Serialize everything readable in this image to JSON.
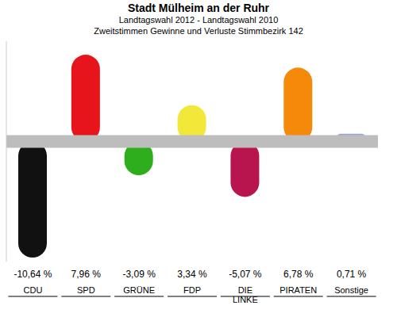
{
  "chart_data": {
    "type": "bar",
    "title": "Stadt Mülheim an der Ruhr",
    "subtitle": "Landtagswahl 2012 - Landtagswahl 2010\nZweitstimmen Gewinne und Verluste Stimmbezirk 142",
    "categories": [
      "CDU",
      "SPD",
      "GRÜNE",
      "FDP",
      "DIE LINKE",
      "PIRATEN",
      "Sonstige"
    ],
    "values": [
      -10.64,
      7.96,
      -3.09,
      3.34,
      -5.07,
      6.78,
      0.71
    ],
    "value_labels": [
      "-10,64 %",
      "7,96 %",
      "-3,09 %",
      "3,34 %",
      "-5,07 %",
      "6,78 %",
      "0,71 %"
    ],
    "colors": [
      "#111111",
      "#e8141c",
      "#2eae1c",
      "#f2e83a",
      "#b8144e",
      "#f58a0a",
      "#9aa6dc"
    ],
    "ylim": [
      -11,
      9.2
    ],
    "data_labels": true,
    "tick_labels": "x",
    "grid": false
  }
}
